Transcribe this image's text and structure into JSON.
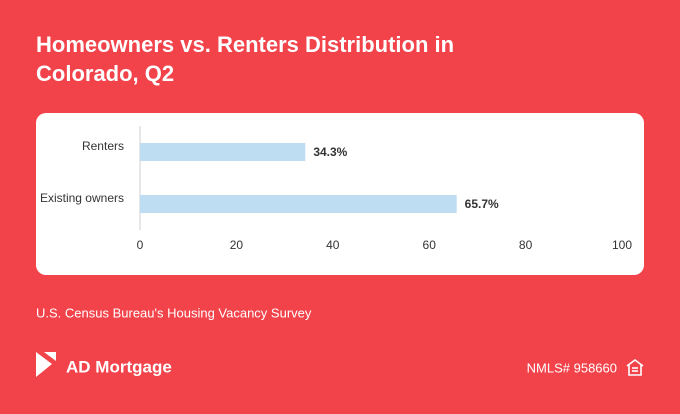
{
  "chart_data": {
    "type": "bar",
    "orientation": "horizontal",
    "title": "Homeowners vs. Renters Distribution in Colorado, Q2",
    "categories": [
      "Renters",
      "Existing owners"
    ],
    "values": [
      34.3,
      65.7
    ],
    "value_labels": [
      "34.3%",
      "65.7%"
    ],
    "color": "#bedcf2",
    "xlim": [
      0,
      100
    ],
    "xticks": [
      0,
      20,
      40,
      60,
      80,
      100
    ],
    "grid": false
  },
  "source": "U.S. Census Bureau's Housing Vacancy Survey",
  "brand": "AD Mortgage",
  "nmls": "NMLS# 958660"
}
